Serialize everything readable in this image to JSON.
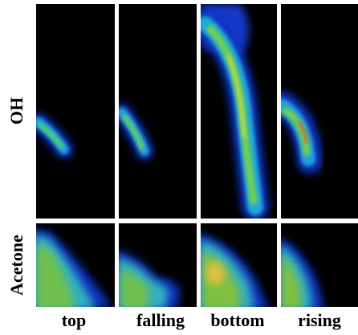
{
  "row_labels": [
    "OH",
    "Acetone"
  ],
  "column_labels": [
    "top",
    "falling",
    "bottom",
    "rising"
  ]
}
